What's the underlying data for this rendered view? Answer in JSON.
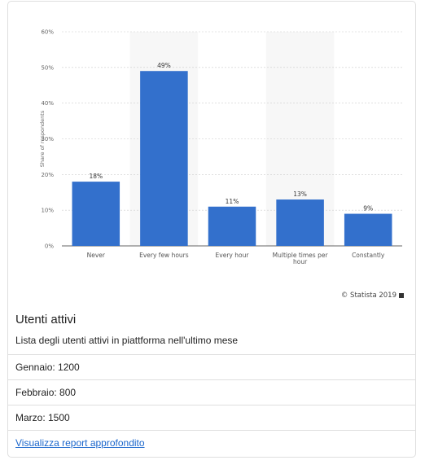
{
  "chart_data": {
    "type": "bar",
    "categories": [
      "Never",
      "Every few hours",
      "Every hour",
      "Multiple times per hour",
      "Constantly"
    ],
    "category_lines": [
      [
        "Never"
      ],
      [
        "Every few hours"
      ],
      [
        "Every hour"
      ],
      [
        "Multiple times per",
        "hour"
      ],
      [
        "Constantly"
      ]
    ],
    "values": [
      18,
      49,
      11,
      13,
      9
    ],
    "data_labels": [
      "18%",
      "49%",
      "11%",
      "13%",
      "9%"
    ],
    "ylabel": "Share of respondents",
    "ylim": [
      0,
      60
    ],
    "yticks": [
      0,
      10,
      20,
      30,
      40,
      50,
      60
    ],
    "ytick_labels": [
      "0%",
      "10%",
      "20%",
      "30%",
      "40%",
      "50%",
      "60%"
    ],
    "grid": true,
    "bar_color": "#3370cc",
    "band_color": "#f7f7f7"
  },
  "credit": "© Statista 2019",
  "card": {
    "title": "Utenti attivi",
    "text": "Lista degli utenti attivi in piattforma nell'ultimo mese",
    "items": [
      {
        "text": "Gennaio: 1200"
      },
      {
        "text": "Febbraio: 800"
      },
      {
        "text": "Marzo: 1500"
      }
    ],
    "link": "Visualizza report approfondito"
  }
}
